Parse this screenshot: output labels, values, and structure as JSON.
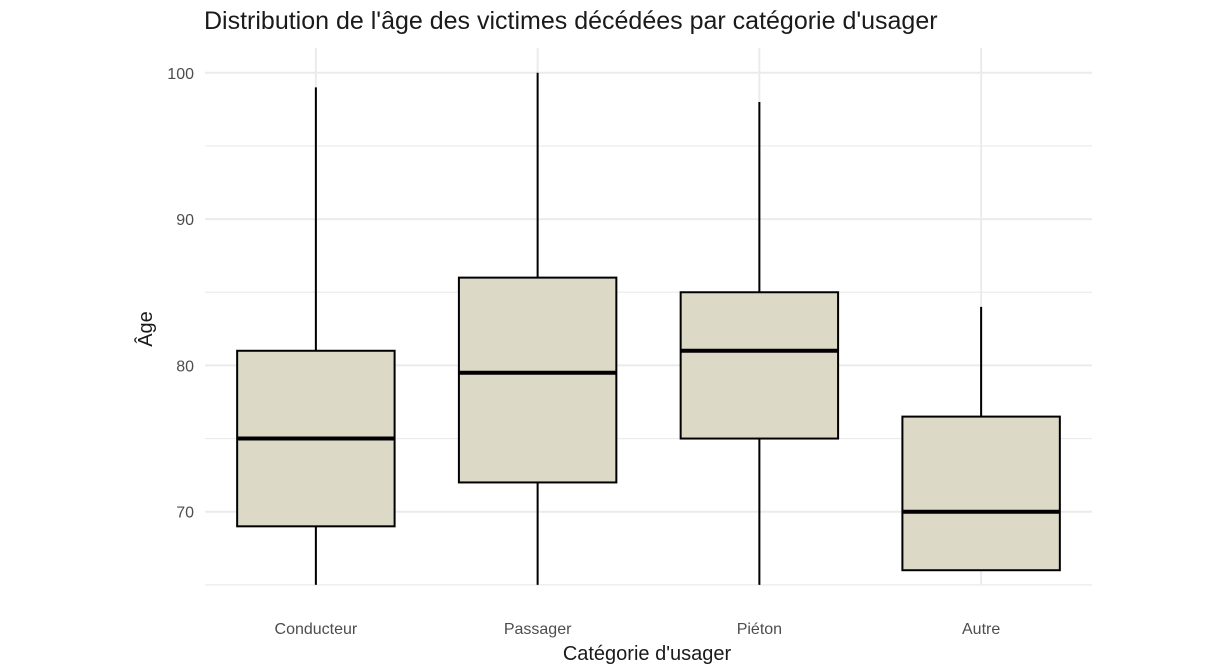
{
  "chart_data": {
    "type": "boxplot",
    "title": "Distribution de l'âge des victimes décédées par catégorie d'usager",
    "xlabel": "Catégorie d'usager",
    "ylabel": "Âge",
    "categories": [
      "Conducteur",
      "Passager",
      "Piéton",
      "Autre"
    ],
    "boxes": [
      {
        "category": "Conducteur",
        "whisker_low": 65,
        "q1": 69,
        "median": 75,
        "q3": 81,
        "whisker_high": 99
      },
      {
        "category": "Passager",
        "whisker_low": 65,
        "q1": 72,
        "median": 79.5,
        "q3": 86,
        "whisker_high": 100
      },
      {
        "category": "Piéton",
        "whisker_low": 65,
        "q1": 75,
        "median": 81,
        "q3": 85,
        "whisker_high": 98
      },
      {
        "category": "Autre",
        "whisker_low": 66,
        "q1": 66,
        "median": 70,
        "q3": 76.5,
        "whisker_high": 84
      }
    ],
    "y_ticks": [
      "70",
      "80",
      "90",
      "100"
    ],
    "ylim": [
      65,
      100
    ],
    "grid": true,
    "box_fill": "#dcd9c7",
    "box_stroke": "#000000",
    "grid_color": "#ebebeb"
  }
}
